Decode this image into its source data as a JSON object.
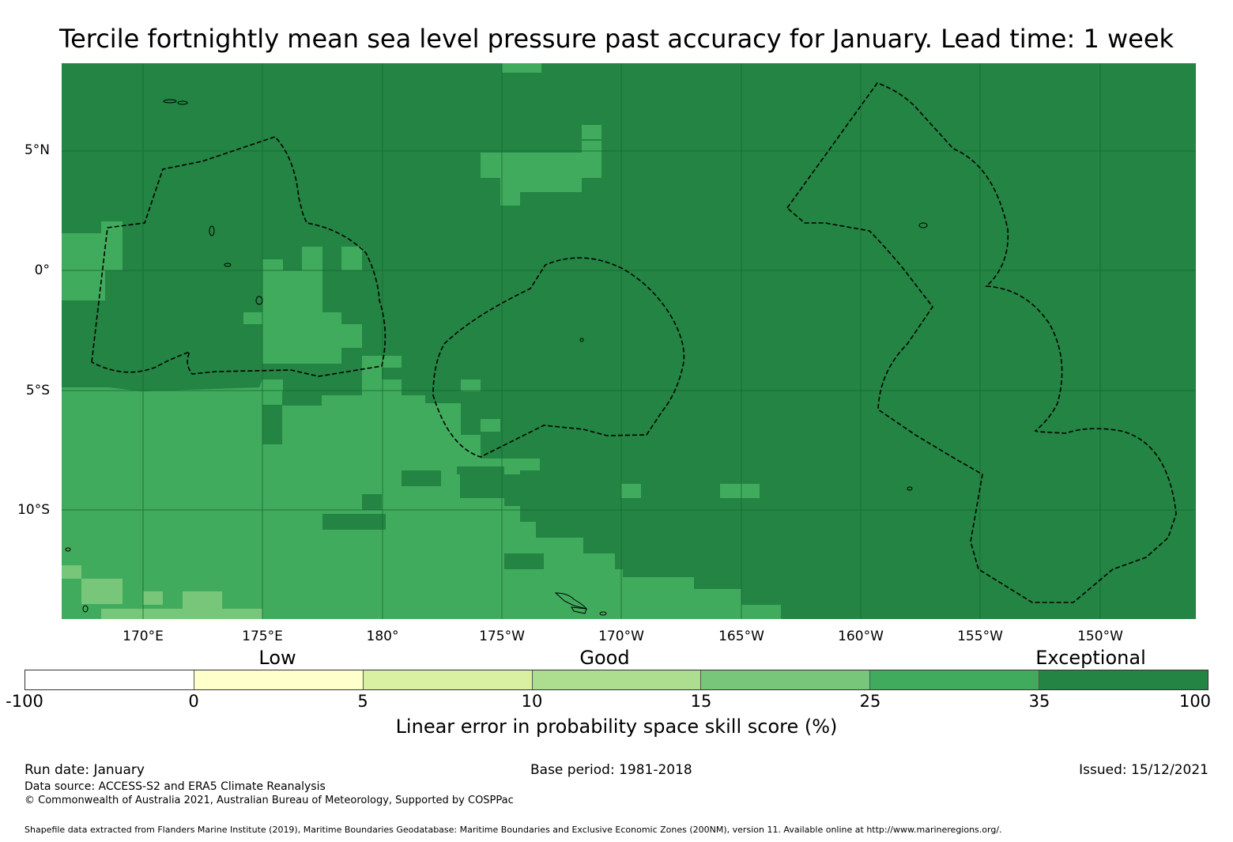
{
  "title": "Tercile fortnightly mean sea level pressure past accuracy for January. Lead time: 1 week",
  "map": {
    "lat_labels": [
      "5°N",
      "0°",
      "5°S",
      "10°S"
    ],
    "lon_labels": [
      "170°E",
      "175°E",
      "180°",
      "175°W",
      "170°W",
      "165°W",
      "160°W",
      "155°W",
      "150°W"
    ],
    "colors": {
      "very_high": "#238443",
      "high": "#41ab5d",
      "medium": "#78c679",
      "land": "#ffffff",
      "boundary": "#000000",
      "gridline": "#1a6634"
    }
  },
  "colorbar": {
    "categories": [
      "Low",
      "Good",
      "Exceptional"
    ],
    "ticks": [
      "-100",
      "0",
      "5",
      "10",
      "15",
      "25",
      "35",
      "100"
    ],
    "colors": [
      "#ffffff",
      "#ffffcc",
      "#d9f0a3",
      "#addd8e",
      "#78c679",
      "#41ab5d",
      "#238443"
    ],
    "label": "Linear error in probability space skill score (%)"
  },
  "footer": {
    "run_date": "Run date: January",
    "base_period": "Base period: 1981-2018",
    "issued": "Issued: 15/12/2021",
    "data_source": "Data source: ACCESS-S2 and ERA5 Climate Reanalysis",
    "copyright": "© Commonwealth of Australia 2021, Australian Bureau of Meteorology, Supported by COSPPac",
    "shapefile": "Shapefile data extracted from Flanders Marine Institute (2019), Maritime Boundaries Geodatabase: Maritime Boundaries and Exclusive Economic Zones (200NM), version 11. Available online at http://www.marineregions.org/."
  }
}
